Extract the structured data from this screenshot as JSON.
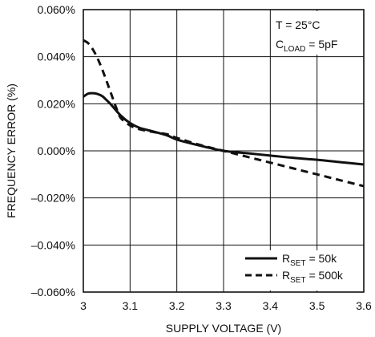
{
  "chart_data": {
    "type": "line",
    "xlabel": "SUPPLY VOLTAGE (V)",
    "ylabel": "FREQUENCY ERROR (%)",
    "xlim": [
      3.0,
      3.6
    ],
    "ylim": [
      -0.06,
      0.06
    ],
    "x_ticks": [
      "3",
      "3.1",
      "3.2",
      "3.3",
      "3.4",
      "3.5",
      "3.6"
    ],
    "y_ticks": [
      "–0.060%",
      "–0.040%",
      "–0.020%",
      "0.000%",
      "0.020%",
      "0.040%",
      "0.060%"
    ],
    "grid": true,
    "annotation": {
      "temp": "T = 25°C",
      "cload_main": "C",
      "cload_sub": "LOAD",
      "cload_rest": " = 5pF"
    },
    "legend": {
      "placement": "bottom-right",
      "items": [
        {
          "main": "R",
          "sub": "SET",
          "rest": " = 50k",
          "style": "solid"
        },
        {
          "main": "R",
          "sub": "SET",
          "rest": " = 500k",
          "style": "dashed"
        }
      ]
    },
    "series": [
      {
        "style": "solid",
        "x": [
          3.0,
          3.01,
          3.02,
          3.03,
          3.04,
          3.05,
          3.06,
          3.08,
          3.1,
          3.12,
          3.15,
          3.18,
          3.2,
          3.25,
          3.3,
          3.35,
          3.4,
          3.45,
          3.5,
          3.55,
          3.6
        ],
        "y": [
          0.023,
          0.0243,
          0.0245,
          0.0242,
          0.0233,
          0.0215,
          0.0195,
          0.015,
          0.0118,
          0.0098,
          0.0082,
          0.0065,
          0.0048,
          0.0022,
          0.0,
          -0.001,
          -0.002,
          -0.003,
          -0.0038,
          -0.0048,
          -0.0058
        ]
      },
      {
        "style": "dashed",
        "x": [
          3.0,
          3.01,
          3.02,
          3.03,
          3.04,
          3.05,
          3.06,
          3.07,
          3.08,
          3.1,
          3.12,
          3.15,
          3.18,
          3.2,
          3.25,
          3.3,
          3.35,
          3.4,
          3.45,
          3.5,
          3.55,
          3.6
        ],
        "y": [
          0.047,
          0.0458,
          0.0432,
          0.0395,
          0.0348,
          0.0295,
          0.024,
          0.0185,
          0.014,
          0.0108,
          0.0092,
          0.008,
          0.007,
          0.0055,
          0.0025,
          0.0,
          -0.0025,
          -0.005,
          -0.0075,
          -0.01,
          -0.0125,
          -0.015
        ]
      }
    ]
  }
}
